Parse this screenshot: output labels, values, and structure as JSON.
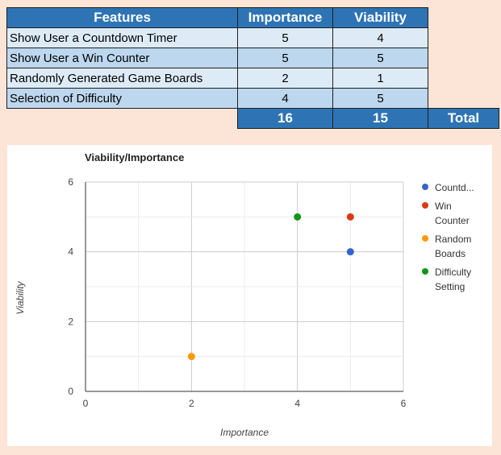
{
  "table": {
    "headers": [
      "Features",
      "Importance",
      "Viability"
    ],
    "rows": [
      {
        "feature": "Show User a Countdown Timer",
        "importance": "5",
        "viability": "4"
      },
      {
        "feature": "Show User a Win Counter",
        "importance": "5",
        "viability": "5"
      },
      {
        "feature": "Randomly Generated Game Boards",
        "importance": "2",
        "viability": "1"
      },
      {
        "feature": "Selection of Difficulty",
        "importance": "4",
        "viability": "5"
      }
    ],
    "totals": {
      "importance": "16",
      "viability": "15",
      "label": "Total"
    }
  },
  "colors": {
    "header_fill": "#2e74b5",
    "row_light": "#ddebf7",
    "row_mid": "#bdd7ee",
    "background": "#fce4d6"
  },
  "chart_data": {
    "type": "scatter",
    "title": "Viability/Importance",
    "xlabel": "Importance",
    "ylabel": "Viability",
    "xlim": [
      0,
      6
    ],
    "ylim": [
      0,
      6
    ],
    "xticks": [
      "0",
      "2",
      "4",
      "6"
    ],
    "yticks": [
      "0",
      "2",
      "4",
      "6"
    ],
    "grid": true,
    "legend_position": "right",
    "series": [
      {
        "name": "Countd...",
        "color": "#3366cc",
        "x": [
          5
        ],
        "y": [
          4
        ]
      },
      {
        "name": "Win Counter",
        "color": "#dc3912",
        "x": [
          5
        ],
        "y": [
          5
        ]
      },
      {
        "name": "Random Boards",
        "color": "#ff9900",
        "x": [
          2
        ],
        "y": [
          1
        ]
      },
      {
        "name": "Difficulty Setting",
        "color": "#109618",
        "x": [
          4
        ],
        "y": [
          5
        ]
      }
    ]
  }
}
